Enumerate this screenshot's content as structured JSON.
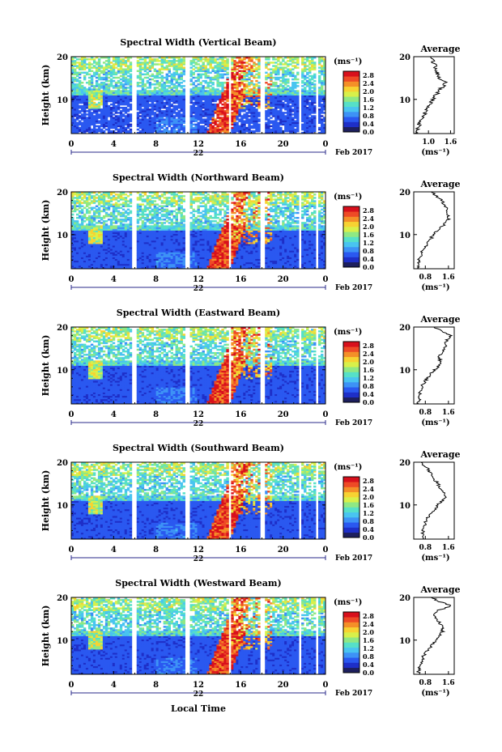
{
  "chart_data": [
    {
      "type": "heatmap",
      "title": "Spectral Width (Vertical Beam)",
      "ylabel": "Height (km)",
      "colorbar_unit": "(ms⁻¹)",
      "colorbar_ticks": [
        "0.0",
        "0.4",
        "0.8",
        "1.2",
        "1.6",
        "2.0",
        "2.4",
        "2.8"
      ],
      "x_ticks": [
        "0",
        "4",
        "8",
        "12",
        "16",
        "20",
        "0"
      ],
      "date_day": "22",
      "date_month": "Feb 2017",
      "xlim": [
        0,
        24
      ],
      "ylim": [
        2,
        20
      ],
      "clim": [
        0,
        3.0
      ],
      "y_ticks": [
        "10",
        "20"
      ],
      "average": {
        "title": "Average",
        "xlabel": "(ms⁻¹)",
        "x_ticks": [
          "1.0",
          "1.6"
        ],
        "xlim": [
          0.6,
          1.7
        ],
        "profile_height": [
          2,
          3,
          4,
          5,
          6,
          7,
          8,
          9,
          10,
          11,
          12,
          13,
          14,
          15,
          16,
          17,
          18,
          19,
          20
        ],
        "profile_value": [
          0.66,
          0.7,
          0.74,
          0.78,
          0.84,
          0.92,
          0.98,
          1.04,
          1.12,
          1.2,
          1.3,
          1.38,
          1.5,
          1.3,
          1.25,
          1.2,
          1.18,
          1.12,
          1.05
        ]
      }
    },
    {
      "type": "heatmap",
      "title": "Spectral Width (Northward Beam)",
      "ylabel": "Height (km)",
      "colorbar_unit": "(ms⁻¹)",
      "colorbar_ticks": [
        "0.0",
        "0.4",
        "0.8",
        "1.2",
        "1.6",
        "2.0",
        "2.4",
        "2.8"
      ],
      "x_ticks": [
        "0",
        "4",
        "8",
        "12",
        "16",
        "20",
        "0"
      ],
      "date_day": "22",
      "date_month": "Feb 2017",
      "xlim": [
        0,
        24
      ],
      "ylim": [
        2,
        20
      ],
      "clim": [
        0,
        3.0
      ],
      "y_ticks": [
        "10",
        "20"
      ],
      "average": {
        "title": "Average",
        "xlabel": "(ms⁻¹)",
        "x_ticks": [
          "0.8",
          "1.6"
        ],
        "xlim": [
          0.4,
          1.8
        ],
        "profile_height": [
          2,
          3,
          4,
          5,
          6,
          7,
          8,
          9,
          10,
          11,
          12,
          13,
          14,
          15,
          16,
          17,
          18,
          19,
          20
        ],
        "profile_value": [
          0.55,
          0.6,
          0.58,
          0.62,
          0.7,
          0.78,
          0.9,
          1.0,
          1.05,
          1.2,
          1.4,
          1.55,
          1.62,
          1.5,
          1.55,
          1.45,
          1.35,
          1.2,
          1.0
        ]
      }
    },
    {
      "type": "heatmap",
      "title": "Spectral Width (Eastward Beam)",
      "ylabel": "Height (km)",
      "colorbar_unit": "(ms⁻¹)",
      "colorbar_ticks": [
        "0.0",
        "0.4",
        "0.8",
        "1.2",
        "1.6",
        "2.0",
        "2.4",
        "2.8"
      ],
      "x_ticks": [
        "0",
        "4",
        "8",
        "12",
        "16",
        "20",
        "0"
      ],
      "date_day": "22",
      "date_month": "Feb 2017",
      "xlim": [
        0,
        24
      ],
      "ylim": [
        2,
        20
      ],
      "clim": [
        0,
        3.0
      ],
      "y_ticks": [
        "10",
        "20"
      ],
      "average": {
        "title": "Average",
        "xlabel": "(ms⁻¹)",
        "x_ticks": [
          "0.8",
          "1.6"
        ],
        "xlim": [
          0.4,
          1.8
        ],
        "profile_height": [
          2,
          3,
          4,
          5,
          6,
          7,
          8,
          9,
          10,
          11,
          12,
          13,
          14,
          15,
          16,
          17,
          18,
          19,
          20
        ],
        "profile_value": [
          0.55,
          0.58,
          0.6,
          0.62,
          0.68,
          0.76,
          0.86,
          0.98,
          1.12,
          1.3,
          1.32,
          1.28,
          1.35,
          1.45,
          1.5,
          1.55,
          1.72,
          1.4,
          1.1
        ]
      }
    },
    {
      "type": "heatmap",
      "title": "Spectral Width (Southward Beam)",
      "ylabel": "Height (km)",
      "colorbar_unit": "(ms⁻¹)",
      "colorbar_ticks": [
        "0.0",
        "0.4",
        "0.8",
        "1.2",
        "1.6",
        "2.0",
        "2.4",
        "2.8"
      ],
      "x_ticks": [
        "0",
        "4",
        "8",
        "12",
        "16",
        "20",
        "0"
      ],
      "date_day": "22",
      "date_month": "Feb 2017",
      "xlim": [
        0,
        24
      ],
      "ylim": [
        2,
        20
      ],
      "clim": [
        0,
        3.0
      ],
      "y_ticks": [
        "10",
        "20"
      ],
      "average": {
        "title": "Average",
        "xlabel": "(ms⁻¹)",
        "x_ticks": [
          "0.8",
          "1.6"
        ],
        "xlim": [
          0.4,
          1.8
        ],
        "profile_height": [
          2,
          3,
          4,
          5,
          6,
          7,
          8,
          9,
          10,
          11,
          12,
          13,
          14,
          15,
          16,
          17,
          18,
          19,
          20
        ],
        "profile_value": [
          0.7,
          0.72,
          0.72,
          0.76,
          0.8,
          0.88,
          1.0,
          1.12,
          1.24,
          1.38,
          1.5,
          1.4,
          1.3,
          1.25,
          1.1,
          1.0,
          0.95,
          0.8,
          0.65
        ]
      }
    },
    {
      "type": "heatmap",
      "title": "Spectral Width (Westward Beam)",
      "ylabel": "Height (km)",
      "colorbar_unit": "(ms⁻¹)",
      "colorbar_ticks": [
        "0.0",
        "0.4",
        "0.8",
        "1.2",
        "1.6",
        "2.0",
        "2.4",
        "2.8"
      ],
      "x_ticks": [
        "0",
        "4",
        "8",
        "12",
        "16",
        "20",
        "0"
      ],
      "date_day": "22",
      "date_month": "Feb 2017",
      "xlim": [
        0,
        24
      ],
      "ylim": [
        2,
        20
      ],
      "clim": [
        0,
        3.0
      ],
      "y_ticks": [
        "10",
        "20"
      ],
      "average": {
        "title": "Average",
        "xlabel": "(ms⁻¹)",
        "x_ticks": [
          "0.8",
          "1.6"
        ],
        "xlim": [
          0.4,
          1.8
        ],
        "profile_height": [
          2,
          3,
          4,
          5,
          6,
          7,
          8,
          9,
          10,
          11,
          12,
          13,
          14,
          15,
          16,
          17,
          18,
          19,
          20
        ],
        "profile_value": [
          0.55,
          0.58,
          0.62,
          0.66,
          0.72,
          0.8,
          0.92,
          1.05,
          1.18,
          1.32,
          1.4,
          1.38,
          1.3,
          1.2,
          1.05,
          1.25,
          1.7,
          1.3,
          1.0
        ]
      }
    }
  ],
  "x_axis_label": "Local Time",
  "colors": {
    "colormap": [
      "#1d1f5e",
      "#1e2fc8",
      "#2a58f0",
      "#3d92f6",
      "#49c4f0",
      "#56e0c8",
      "#8fe884",
      "#d8f04a",
      "#f7d232",
      "#f48f28",
      "#ee4a26",
      "#d8101c"
    ]
  }
}
